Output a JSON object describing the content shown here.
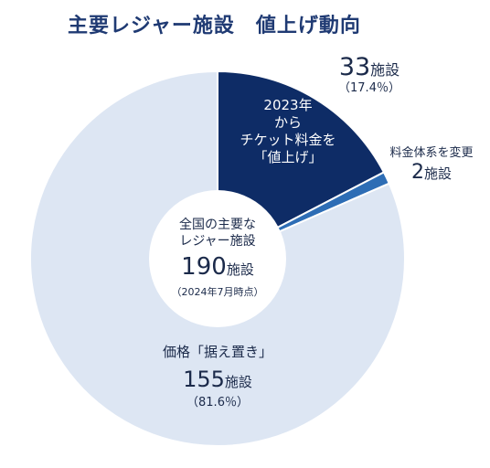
{
  "title": "主要レジャー施設　値上げ動向",
  "colors": {
    "price_up": "#0e2c66",
    "fee_change": "#2d6db5",
    "unchanged": "#dde6f3",
    "center": "#ffffff",
    "title": "#1f3a73"
  },
  "chart_data": {
    "type": "pie",
    "categories": [
      "2023年からチケット料金を「値上げ」",
      "料金体系を変更",
      "価格「据え置き」"
    ],
    "values": [
      33,
      2,
      155
    ],
    "percent_labels": [
      "17.4%",
      "",
      "81.6%"
    ],
    "total": 190,
    "donut": true
  },
  "labels": {
    "price_up_lines": [
      "2023年",
      "から",
      "チケット料金を",
      "「値上げ」"
    ],
    "price_up_count": "33",
    "price_up_unit": "施設",
    "price_up_pct": "（17.4％）",
    "fee_change_name": "料金体系を変更",
    "fee_change_count": "2",
    "fee_change_unit": "施設",
    "unchanged_name": "価格「据え置き」",
    "unchanged_count": "155",
    "unchanged_unit": "施設",
    "unchanged_pct": "（81.6％）",
    "center_line1": "全国の主要な",
    "center_line2": "レジャー施設",
    "center_count": "190",
    "center_unit": "施設",
    "center_note": "（2024年7月時点）"
  }
}
